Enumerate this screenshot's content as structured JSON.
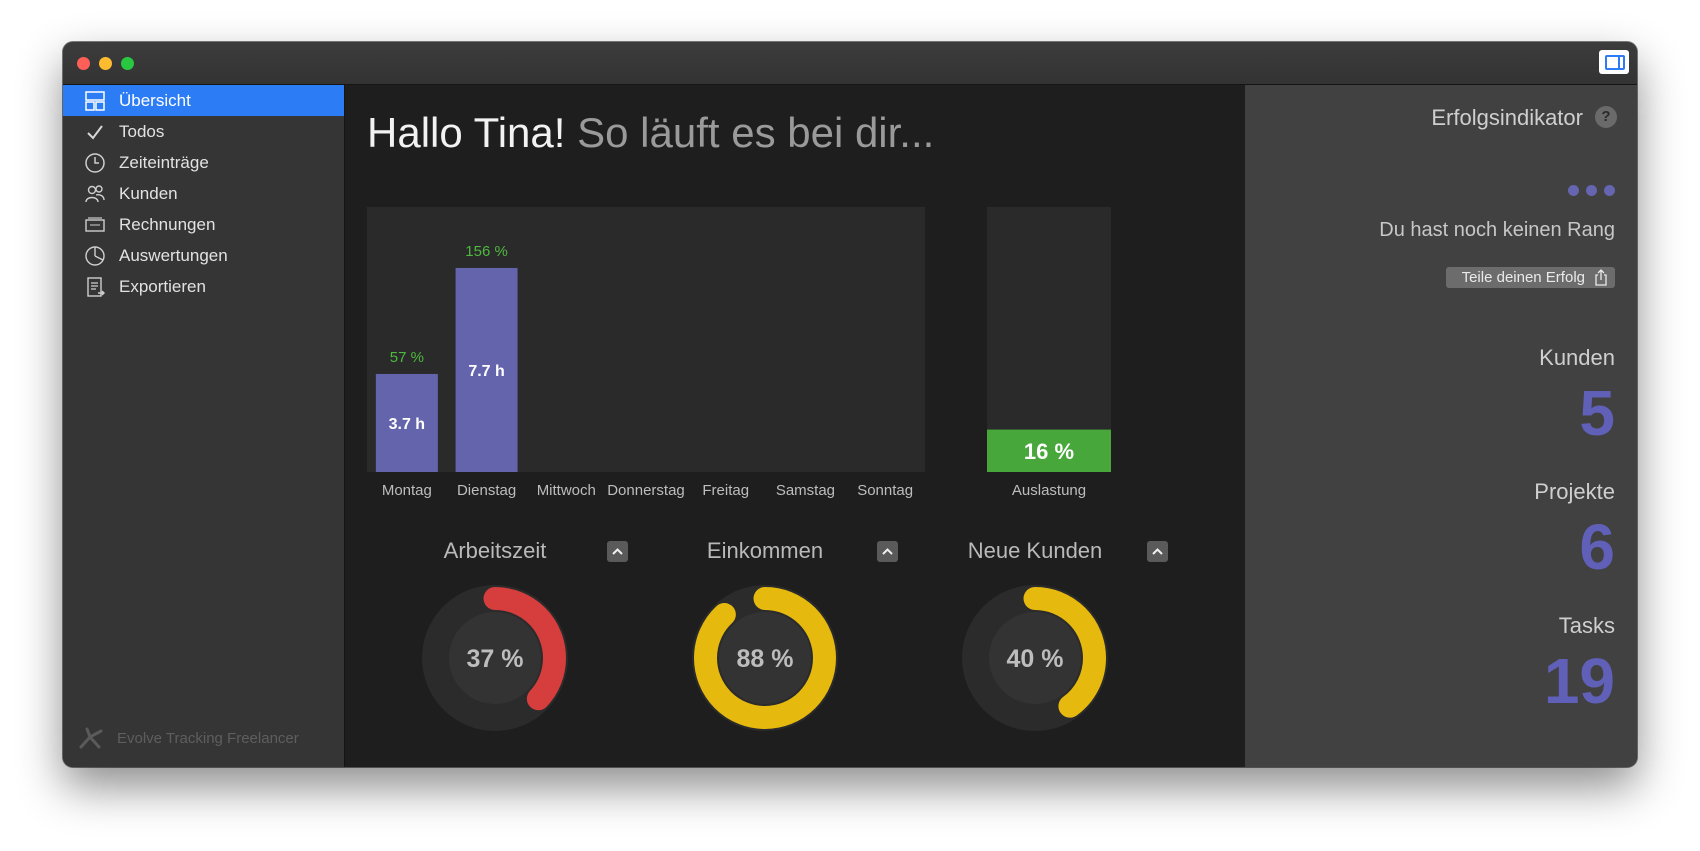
{
  "window": {
    "toggle_icon": "sidebar-toggle-icon"
  },
  "sidebar": {
    "items": [
      {
        "label": "Übersicht",
        "icon": "dashboard-icon",
        "active": true
      },
      {
        "label": "Todos",
        "icon": "checkmark-icon",
        "active": false
      },
      {
        "label": "Zeiteinträge",
        "icon": "clock-icon",
        "active": false
      },
      {
        "label": "Kunden",
        "icon": "customers-icon",
        "active": false
      },
      {
        "label": "Rechnungen",
        "icon": "invoice-icon",
        "active": false
      },
      {
        "label": "Auswertungen",
        "icon": "pie-chart-icon",
        "active": false
      },
      {
        "label": "Exportieren",
        "icon": "export-icon",
        "active": false
      }
    ],
    "brand": "Evolve Tracking Freelancer"
  },
  "main": {
    "greeting_hello": "Hallo Tina!",
    "greeting_sub": "So läuft es bei dir..."
  },
  "chart_data": [
    {
      "type": "bar",
      "categories": [
        "Montag",
        "Dienstag",
        "Mittwoch",
        "Donnerstag",
        "Freitag",
        "Samstag",
        "Sonntag"
      ],
      "values": [
        3.7,
        7.7,
        null,
        null,
        null,
        null,
        null
      ],
      "value_labels": [
        "3.7 h",
        "7.7 h",
        "",
        "",
        "",
        "",
        ""
      ],
      "percent_labels": [
        "57 %",
        "156 %",
        "",
        "",
        "",
        "",
        ""
      ],
      "ylim": [
        0,
        10.0
      ],
      "bar_color": "#6464ac",
      "percent_color": "#4eb83f"
    },
    {
      "type": "bar",
      "categories": [
        "Auslastung"
      ],
      "values": [
        16
      ],
      "value_labels": [
        "16 %"
      ],
      "ylim": [
        0,
        100
      ],
      "bar_color": "#47a73a"
    },
    {
      "type": "pie",
      "title": "Arbeitszeit",
      "value": 37,
      "label": "37 %",
      "color": "#d63d3d"
    },
    {
      "type": "pie",
      "title": "Einkommen",
      "value": 88,
      "label": "88 %",
      "color": "#e6b90e"
    },
    {
      "type": "pie",
      "title": "Neue Kunden",
      "value": 40,
      "label": "40 %",
      "color": "#e6b90e"
    }
  ],
  "right": {
    "title": "Erfolgsindikator",
    "help": "?",
    "rank_text": "Du hast noch keinen Rang",
    "share_label": "Teile deinen Erfolg",
    "stats": [
      {
        "label": "Kunden",
        "value": "5"
      },
      {
        "label": "Projekte",
        "value": "6"
      },
      {
        "label": "Tasks",
        "value": "19"
      }
    ]
  }
}
